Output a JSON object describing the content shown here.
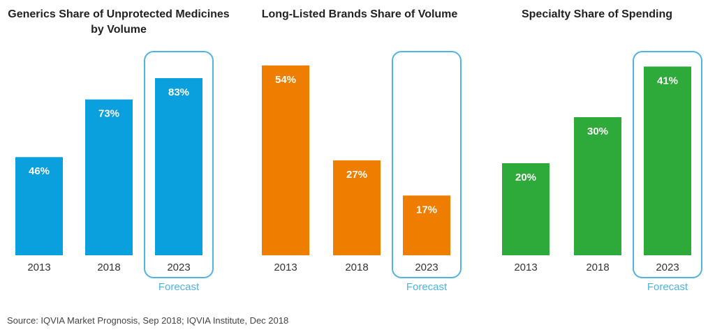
{
  "source": "Source: IQVIA Market Prognosis, Sep 2018; IQVIA Institute, Dec 2018",
  "forecast_color": "#4FB3E3",
  "chart_data": [
    {
      "type": "bar",
      "title": "Generics Share of Unprotected Medicines by Volume",
      "categories": [
        "2013",
        "2018",
        "2023"
      ],
      "values": [
        46,
        73,
        83
      ],
      "value_labels": [
        "46%",
        "73%",
        "83%"
      ],
      "color": "#0AA0DE",
      "forecast_category": "2023",
      "forecast_label": "Forecast"
    },
    {
      "type": "bar",
      "title": "Long-Listed Brands Share of Volume",
      "categories": [
        "2013",
        "2018",
        "2023"
      ],
      "values": [
        54,
        27,
        17
      ],
      "value_labels": [
        "54%",
        "27%",
        "17%"
      ],
      "color": "#EF7D00",
      "forecast_category": "2023",
      "forecast_label": "Forecast"
    },
    {
      "type": "bar",
      "title": "Specialty Share of Spending",
      "categories": [
        "2013",
        "2018",
        "2023"
      ],
      "values": [
        20,
        30,
        41
      ],
      "value_labels": [
        "20%",
        "30%",
        "41%"
      ],
      "color": "#2EAA3A",
      "forecast_category": "2023",
      "forecast_label": "Forecast"
    }
  ]
}
